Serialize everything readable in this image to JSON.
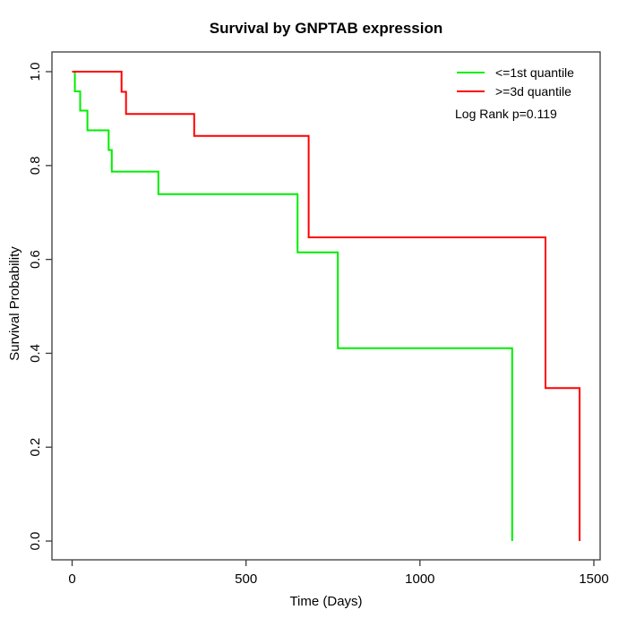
{
  "chart_data": {
    "type": "line",
    "subtype": "kaplan-meier-step-survival",
    "title": "Survival by GNPTAB expression",
    "xlabel": "Time (Days)",
    "ylabel": "Survival Probability",
    "xlim": [
      -58,
      1518
    ],
    "ylim": [
      -0.04,
      1.042
    ],
    "xticks": [
      0,
      500,
      1000,
      1500
    ],
    "yticks": [
      0.0,
      0.2,
      0.4,
      0.6,
      0.8,
      1.0
    ],
    "grid": false,
    "legend_position": "top-right",
    "annotation": "Log Rank p=0.119",
    "frame_color": "#3a3a3a",
    "text_color": "#000000",
    "series": [
      {
        "name": "<=1st quantile",
        "color": "#00ee00",
        "x": [
          0,
          8,
          23,
          44,
          105,
          114,
          248,
          648,
          764,
          1265
        ],
        "y": [
          1.0,
          0.958,
          0.917,
          0.875,
          0.833,
          0.787,
          0.739,
          0.615,
          0.411,
          0.0
        ]
      },
      {
        "name": ">=3d quantile",
        "color": "#ff0000",
        "x": [
          0,
          142,
          155,
          351,
          680,
          1361,
          1459
        ],
        "y": [
          1.0,
          0.957,
          0.91,
          0.863,
          0.647,
          0.326,
          0.0
        ]
      }
    ]
  }
}
